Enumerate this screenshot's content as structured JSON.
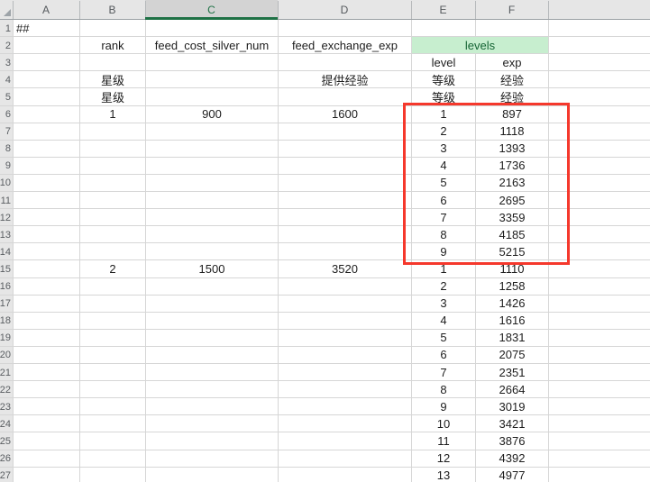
{
  "colors": {
    "accent_green": "#1e7145",
    "levels_fill": "#c7eecf",
    "levels_text": "#156434",
    "annotation_red": "#f5382c"
  },
  "sheet": {
    "column_headers": [
      "A",
      "B",
      "C",
      "D",
      "E",
      "F"
    ],
    "selected_column": "C",
    "row_numbers": [
      1,
      2,
      3,
      4,
      5,
      6,
      7,
      8,
      9,
      10,
      11,
      12,
      13,
      14,
      15,
      16,
      17,
      18,
      19,
      20,
      21,
      22,
      23,
      24,
      25,
      26,
      27
    ],
    "annotation": {
      "type": "rectangle",
      "color": "#f5382c"
    },
    "cells": [
      {
        "r": 1,
        "c": "A",
        "v": "##",
        "align": "left"
      },
      {
        "r": 2,
        "c": "B",
        "v": "rank"
      },
      {
        "r": 2,
        "c": "C",
        "v": "feed_cost_silver_num"
      },
      {
        "r": 2,
        "c": "D",
        "v": "feed_exchange_exp"
      },
      {
        "r": 2,
        "c": "E",
        "v": "levels",
        "colspan": 2,
        "style": "good"
      },
      {
        "r": 3,
        "c": "E",
        "v": "level"
      },
      {
        "r": 3,
        "c": "F",
        "v": "exp"
      },
      {
        "r": 4,
        "c": "B",
        "v": "星级"
      },
      {
        "r": 4,
        "c": "D",
        "v": "提供经验"
      },
      {
        "r": 4,
        "c": "E",
        "v": "等级"
      },
      {
        "r": 4,
        "c": "F",
        "v": "经验"
      },
      {
        "r": 5,
        "c": "B",
        "v": "星级"
      },
      {
        "r": 5,
        "c": "E",
        "v": "等级"
      },
      {
        "r": 5,
        "c": "F",
        "v": "经验"
      },
      {
        "r": 6,
        "c": "B",
        "v": "1"
      },
      {
        "r": 6,
        "c": "C",
        "v": "900"
      },
      {
        "r": 6,
        "c": "D",
        "v": "1600"
      },
      {
        "r": 6,
        "c": "E",
        "v": "1"
      },
      {
        "r": 6,
        "c": "F",
        "v": "897"
      },
      {
        "r": 7,
        "c": "E",
        "v": "2"
      },
      {
        "r": 7,
        "c": "F",
        "v": "1118"
      },
      {
        "r": 8,
        "c": "E",
        "v": "3"
      },
      {
        "r": 8,
        "c": "F",
        "v": "1393"
      },
      {
        "r": 9,
        "c": "E",
        "v": "4"
      },
      {
        "r": 9,
        "c": "F",
        "v": "1736"
      },
      {
        "r": 10,
        "c": "E",
        "v": "5"
      },
      {
        "r": 10,
        "c": "F",
        "v": "2163"
      },
      {
        "r": 11,
        "c": "E",
        "v": "6"
      },
      {
        "r": 11,
        "c": "F",
        "v": "2695"
      },
      {
        "r": 12,
        "c": "E",
        "v": "7"
      },
      {
        "r": 12,
        "c": "F",
        "v": "3359"
      },
      {
        "r": 13,
        "c": "E",
        "v": "8"
      },
      {
        "r": 13,
        "c": "F",
        "v": "4185"
      },
      {
        "r": 14,
        "c": "E",
        "v": "9"
      },
      {
        "r": 14,
        "c": "F",
        "v": "5215"
      },
      {
        "r": 15,
        "c": "B",
        "v": "2"
      },
      {
        "r": 15,
        "c": "C",
        "v": "1500"
      },
      {
        "r": 15,
        "c": "D",
        "v": "3520"
      },
      {
        "r": 15,
        "c": "E",
        "v": "1"
      },
      {
        "r": 15,
        "c": "F",
        "v": "1110"
      },
      {
        "r": 16,
        "c": "E",
        "v": "2"
      },
      {
        "r": 16,
        "c": "F",
        "v": "1258"
      },
      {
        "r": 17,
        "c": "E",
        "v": "3"
      },
      {
        "r": 17,
        "c": "F",
        "v": "1426"
      },
      {
        "r": 18,
        "c": "E",
        "v": "4"
      },
      {
        "r": 18,
        "c": "F",
        "v": "1616"
      },
      {
        "r": 19,
        "c": "E",
        "v": "5"
      },
      {
        "r": 19,
        "c": "F",
        "v": "1831"
      },
      {
        "r": 20,
        "c": "E",
        "v": "6"
      },
      {
        "r": 20,
        "c": "F",
        "v": "2075"
      },
      {
        "r": 21,
        "c": "E",
        "v": "7"
      },
      {
        "r": 21,
        "c": "F",
        "v": "2351"
      },
      {
        "r": 22,
        "c": "E",
        "v": "8"
      },
      {
        "r": 22,
        "c": "F",
        "v": "2664"
      },
      {
        "r": 23,
        "c": "E",
        "v": "9"
      },
      {
        "r": 23,
        "c": "F",
        "v": "3019"
      },
      {
        "r": 24,
        "c": "E",
        "v": "10"
      },
      {
        "r": 24,
        "c": "F",
        "v": "3421"
      },
      {
        "r": 25,
        "c": "E",
        "v": "11"
      },
      {
        "r": 25,
        "c": "F",
        "v": "3876"
      },
      {
        "r": 26,
        "c": "E",
        "v": "12"
      },
      {
        "r": 26,
        "c": "F",
        "v": "4392"
      },
      {
        "r": 27,
        "c": "E",
        "v": "13"
      },
      {
        "r": 27,
        "c": "F",
        "v": "4977"
      }
    ]
  }
}
